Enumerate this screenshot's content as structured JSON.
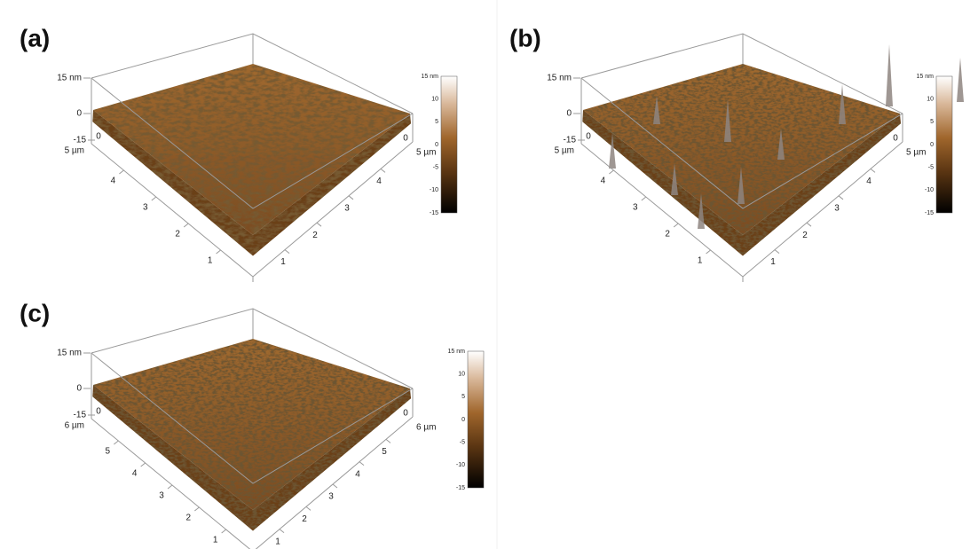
{
  "panels": [
    {
      "label": "(a)",
      "z_labels": [
        "15 nm",
        "0",
        "-15"
      ],
      "x_axis": {
        "origin": "0",
        "ticks": [
          "1",
          "2",
          "3",
          "4"
        ],
        "end": "5 µm"
      },
      "y_axis": {
        "origin": "0",
        "ticks": [
          "1",
          "2",
          "3",
          "4"
        ],
        "end": "5 µm"
      },
      "colorbar": [
        "15 nm",
        "10",
        "5",
        "0",
        "-5",
        "-10",
        "-15"
      ]
    },
    {
      "label": "(b)",
      "z_labels": [
        "15 nm",
        "0",
        "-15"
      ],
      "x_axis": {
        "origin": "0",
        "ticks": [
          "1",
          "2",
          "3",
          "4"
        ],
        "end": "5 µm"
      },
      "y_axis": {
        "origin": "0",
        "ticks": [
          "1",
          "2",
          "3",
          "4"
        ],
        "end": "5 µm"
      },
      "colorbar": [
        "15 nm",
        "10",
        "5",
        "0",
        "-5",
        "-10",
        "-15"
      ]
    },
    {
      "label": "(c)",
      "z_labels": [
        "15 nm",
        "0",
        "-15"
      ],
      "x_axis": {
        "origin": "0",
        "ticks": [
          "1",
          "2",
          "3",
          "4",
          "5"
        ],
        "end": "6 µm"
      },
      "y_axis": {
        "origin": "0",
        "ticks": [
          "1",
          "2",
          "3",
          "4",
          "5"
        ],
        "end": "6 µm"
      },
      "colorbar": [
        "15 nm",
        "10",
        "5",
        "0",
        "-5",
        "-10",
        "-15"
      ]
    }
  ]
}
